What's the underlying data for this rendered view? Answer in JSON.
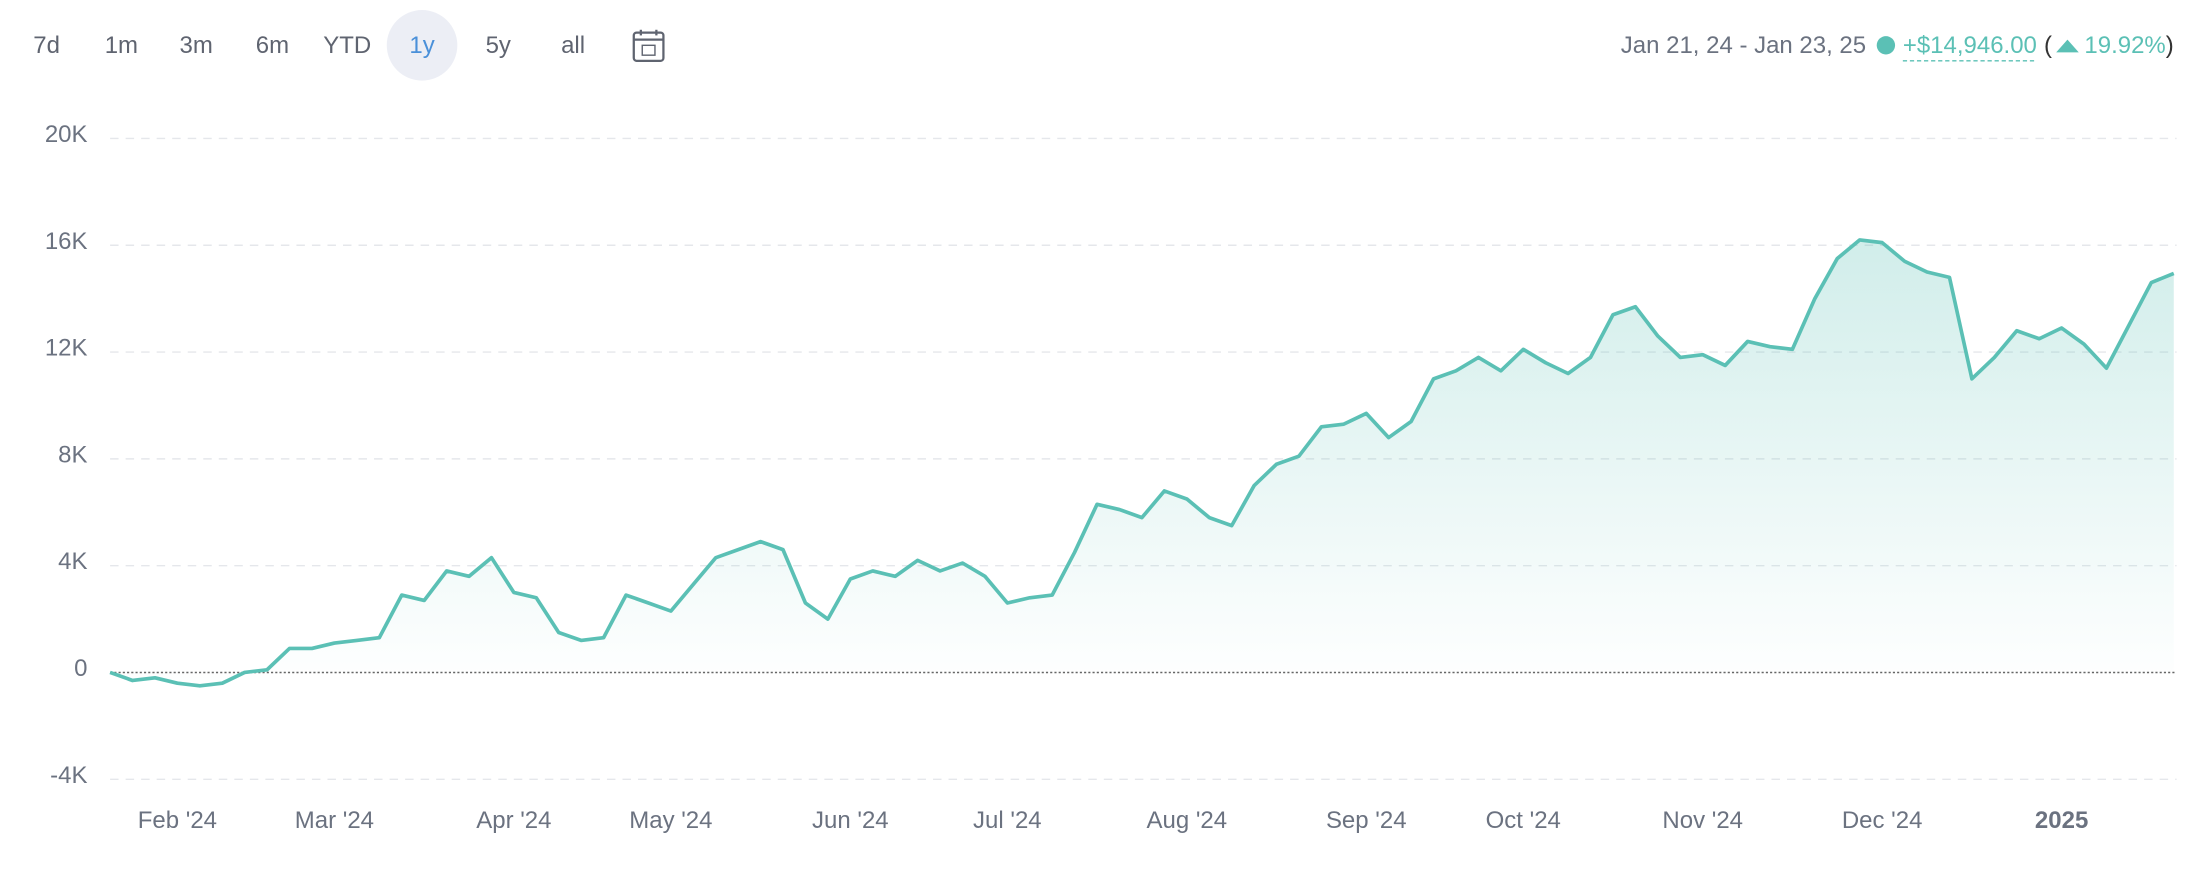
{
  "header": {
    "ranges": [
      "7d",
      "1m",
      "3m",
      "6m",
      "YTD",
      "1y",
      "5y",
      "all"
    ],
    "selected": "1y",
    "date_range": "Jan 21, 24 - Jan 23, 25",
    "change": "+$14,946.00",
    "paren_open": "(",
    "change_pct": "19.92%",
    "paren_close": ")"
  },
  "chart_data": {
    "type": "line",
    "categories": [
      null,
      null,
      null,
      "Feb '24",
      null,
      null,
      null,
      null,
      null,
      null,
      "Mar '24",
      null,
      null,
      null,
      null,
      null,
      null,
      null,
      "Apr '24",
      null,
      null,
      null,
      null,
      null,
      null,
      "May '24",
      null,
      null,
      null,
      null,
      null,
      null,
      null,
      "Jun '24",
      null,
      null,
      null,
      null,
      null,
      null,
      "Jul '24",
      null,
      null,
      null,
      null,
      null,
      null,
      null,
      "Aug '24",
      null,
      null,
      null,
      null,
      null,
      null,
      null,
      "Sep '24",
      null,
      null,
      null,
      null,
      null,
      null,
      "Oct '24",
      null,
      null,
      null,
      null,
      null,
      null,
      null,
      "Nov '24",
      null,
      null,
      null,
      null,
      null,
      null,
      null,
      "Dec '24",
      null,
      null,
      null,
      null,
      null,
      null,
      null,
      "2025",
      null,
      null,
      null,
      null,
      null
    ],
    "series": [
      {
        "color": "#5bc0b5",
        "values": [
          0,
          -300,
          -200,
          -400,
          -500,
          -400,
          0,
          100,
          900,
          900,
          1100,
          1200,
          1300,
          2900,
          2700,
          3800,
          3600,
          4300,
          3000,
          2800,
          1500,
          1200,
          1300,
          2900,
          2600,
          2300,
          3300,
          4300,
          4600,
          4900,
          4600,
          2600,
          2000,
          3500,
          3800,
          3600,
          4200,
          3800,
          4100,
          3600,
          2600,
          2800,
          2900,
          4500,
          6300,
          6100,
          5800,
          6800,
          6500,
          5800,
          5500,
          7000,
          7800,
          8100,
          9200,
          9300,
          9700,
          8800,
          9400,
          11000,
          11300,
          11800,
          11300,
          12100,
          11600,
          11200,
          11800,
          13400,
          13700,
          12600,
          11800,
          11900,
          11500,
          12400,
          12200,
          12100,
          14000,
          15500,
          16200,
          16100,
          15400,
          15000,
          14800,
          11000,
          11800,
          12800,
          12500,
          12900,
          12300,
          11400,
          13000,
          14600,
          14946
        ]
      }
    ],
    "ylim": [
      -4000,
      20000
    ],
    "yticks": [
      {
        "value": -4000,
        "label": "-4K"
      },
      0,
      {
        "value": 4000,
        "label": "4K"
      },
      {
        "value": 8000,
        "label": "8K"
      },
      {
        "value": 12000,
        "label": "12K"
      },
      {
        "value": 16000,
        "label": "16K"
      },
      {
        "value": 20000,
        "label": "20K"
      }
    ],
    "grid": true
  }
}
